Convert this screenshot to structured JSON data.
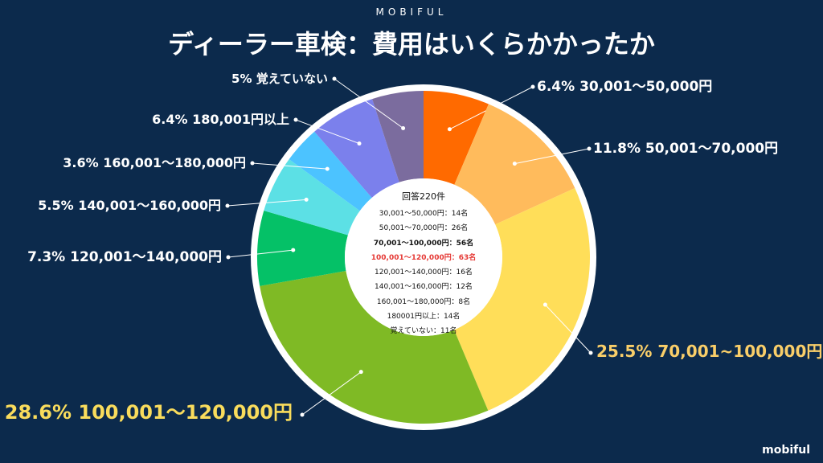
{
  "header": {
    "brand": "MOBIFUL",
    "title": "ディーラー車検：費用はいくらかかったか"
  },
  "footer": {
    "brand": "mobiful"
  },
  "center": {
    "heading": "回答220件",
    "lines": [
      {
        "text": "30,001〜50,000円：14名",
        "style": "normal"
      },
      {
        "text": "50,001〜70,000円：26名",
        "style": "normal"
      },
      {
        "text": "70,001〜100,000円：56名",
        "style": "bold"
      },
      {
        "text": "100,001〜120,000円：63名",
        "style": "bold-red"
      },
      {
        "text": "120,001〜140,000円：16名",
        "style": "normal"
      },
      {
        "text": "140,001〜160,000円：12名",
        "style": "normal"
      },
      {
        "text": "160,001〜180,000円：8名",
        "style": "normal"
      },
      {
        "text": "180001円以上：14名",
        "style": "normal"
      },
      {
        "text": "覚えていない：11名",
        "style": "normal"
      }
    ]
  },
  "chart_data": {
    "type": "pie",
    "donut": true,
    "title": "ディーラー車検：費用はいくらかかったか",
    "total_label": "回答220件",
    "slices": [
      {
        "label": "6.4%  30,001〜50,000円",
        "category": "30,001〜50,000円",
        "value": 6.4,
        "count": 14,
        "color": "#ff6a00",
        "label_color": "#ffffff",
        "highlight": false
      },
      {
        "label": "11.8%  50,001〜70,000円",
        "category": "50,001〜70,000円",
        "value": 11.8,
        "count": 26,
        "color": "#ffbb5c",
        "label_color": "#ffffff",
        "highlight": false
      },
      {
        "label": "25.5% 70,001~100,000円",
        "category": "70,001〜100,000円",
        "value": 25.5,
        "count": 56,
        "color": "#ffde59",
        "label_color": "#f9ce69",
        "highlight": true
      },
      {
        "label": "28.6% 100,001〜120,000円",
        "category": "100,001〜120,000円",
        "value": 28.6,
        "count": 63,
        "color": "#7fba25",
        "label_color": "#f9dc5c",
        "highlight": true
      },
      {
        "label": "7.3% 120,001〜140,000円",
        "category": "120,001〜140,000円",
        "value": 7.3,
        "count": 16,
        "color": "#05c167",
        "label_color": "#ffffff",
        "highlight": false
      },
      {
        "label": "5.5% 140,001〜160,000円",
        "category": "140,001〜160,000円",
        "value": 5.5,
        "count": 12,
        "color": "#5ce0e5",
        "label_color": "#ffffff",
        "highlight": false
      },
      {
        "label": "3.6% 160,001〜180,000円",
        "category": "160,001〜180,000円",
        "value": 3.6,
        "count": 8,
        "color": "#4cc3ff",
        "label_color": "#ffffff",
        "highlight": false
      },
      {
        "label": "6.4% 180,001円以上",
        "category": "180,001円以上",
        "value": 6.4,
        "count": 14,
        "color": "#7b80ec",
        "label_color": "#ffffff",
        "highlight": false
      },
      {
        "label": "5% 覚えていない",
        "category": "覚えていない",
        "value": 5.0,
        "count": 11,
        "color": "#7b6c9e",
        "label_color": "#ffffff",
        "highlight": false
      }
    ]
  }
}
